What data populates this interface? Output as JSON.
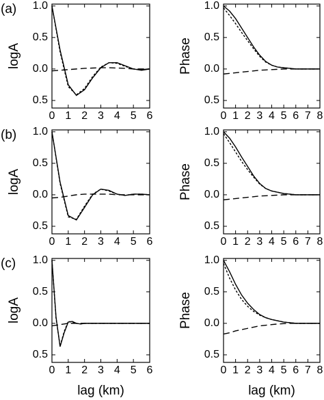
{
  "chart_data": [
    {
      "type": "line",
      "panel_label": "(a)",
      "ylabel": "logA",
      "x": [
        0,
        0.5,
        1,
        1.5,
        2,
        2.5,
        3,
        3.5,
        4,
        4.5,
        5,
        5.5,
        6
      ],
      "series": [
        {
          "color": "#000000",
          "style": "solid",
          "values": [
            1,
            0.3,
            -0.25,
            -0.42,
            -0.33,
            -0.14,
            0.02,
            0.1,
            0.1,
            0.05,
            0,
            -0.02,
            0
          ]
        },
        {
          "color": "#000000",
          "style": "dotted",
          "values": [
            1,
            0.27,
            -0.28,
            -0.41,
            -0.31,
            -0.12,
            0.03,
            0.1,
            0.09,
            0.04,
            0,
            -0.01,
            0
          ]
        },
        {
          "color": "#000000",
          "style": "dashed",
          "values": [
            -0.03,
            -0.02,
            -0.01,
            0,
            0.01,
            0.015,
            0.02,
            0.02,
            0.015,
            0.01,
            0,
            0,
            0
          ]
        }
      ],
      "xlim": [
        0,
        6
      ],
      "xticks": [
        0,
        1,
        2,
        3,
        4,
        5,
        6
      ],
      "ylim": [
        -0.62,
        1.03
      ],
      "yticks": [
        {
          "value": 1,
          "label": "1.0"
        },
        0.5,
        {
          "value": 0,
          "label": "0.0"
        },
        {
          "value": -0.5,
          "label": "0.5"
        }
      ]
    },
    {
      "type": "line",
      "ylabel": "Phase",
      "x": [
        0,
        0.5,
        1,
        1.5,
        2,
        2.5,
        3,
        3.5,
        4,
        4.5,
        5,
        5.5,
        6,
        6.5,
        7,
        7.5,
        8
      ],
      "series": [
        {
          "color": "#000000",
          "style": "solid",
          "values": [
            1,
            0.92,
            0.8,
            0.65,
            0.5,
            0.35,
            0.22,
            0.12,
            0.06,
            0.03,
            0.02,
            0.01,
            0,
            0,
            0,
            0,
            0
          ]
        },
        {
          "color": "#000000",
          "style": "dotted",
          "values": [
            0.97,
            0.85,
            0.72,
            0.58,
            0.45,
            0.32,
            0.2,
            0.11,
            0.06,
            0.03,
            0.02,
            0.01,
            0,
            0,
            0,
            0,
            0
          ]
        },
        {
          "color": "#000000",
          "style": "dashed",
          "values": [
            -0.08,
            -0.07,
            -0.06,
            -0.05,
            -0.04,
            -0.03,
            -0.02,
            -0.015,
            -0.01,
            -0.005,
            0,
            0,
            0,
            0,
            0,
            0,
            0
          ]
        }
      ],
      "xlim": [
        0,
        8
      ],
      "xticks": [
        0,
        1,
        2,
        3,
        4,
        5,
        6,
        7,
        8
      ],
      "ylim": [
        -0.62,
        1.03
      ],
      "yticks": [
        {
          "value": 1,
          "label": "1.0"
        },
        0.5,
        {
          "value": 0,
          "label": "0.0"
        },
        {
          "value": -0.5,
          "label": "0.5"
        }
      ]
    },
    {
      "type": "line",
      "panel_label": "(b)",
      "ylabel": "logA",
      "x": [
        0,
        0.5,
        1,
        1.5,
        2,
        2.5,
        3,
        3.5,
        4,
        4.5,
        5,
        5.5,
        6
      ],
      "series": [
        {
          "color": "#000000",
          "style": "solid",
          "values": [
            1,
            0.2,
            -0.33,
            -0.4,
            -0.2,
            0,
            0.09,
            0.07,
            0.01,
            -0.01,
            0.01,
            0.01,
            0
          ]
        },
        {
          "color": "#000000",
          "style": "dotted",
          "values": [
            1,
            0.18,
            -0.35,
            -0.39,
            -0.18,
            0.01,
            0.09,
            0.06,
            0.01,
            -0.01,
            0.01,
            0.01,
            0
          ]
        },
        {
          "color": "#000000",
          "style": "dashed",
          "values": [
            -0.05,
            -0.04,
            -0.02,
            0,
            0.01,
            0.01,
            0.01,
            0.01,
            0,
            0,
            0,
            0,
            0
          ]
        }
      ],
      "xlim": [
        0,
        6
      ],
      "xticks": [
        0,
        1,
        2,
        3,
        4,
        5,
        6
      ],
      "ylim": [
        -0.62,
        1.03
      ],
      "yticks": [
        {
          "value": 1,
          "label": "1.0"
        },
        0.5,
        {
          "value": 0,
          "label": "0.0"
        },
        {
          "value": -0.5,
          "label": "0.5"
        }
      ]
    },
    {
      "type": "line",
      "ylabel": "Phase",
      "x": [
        0,
        0.5,
        1,
        1.5,
        2,
        2.5,
        3,
        3.5,
        4,
        4.5,
        5,
        5.5,
        6,
        6.5,
        7,
        7.5,
        8
      ],
      "series": [
        {
          "color": "#000000",
          "style": "solid",
          "values": [
            1,
            0.9,
            0.76,
            0.6,
            0.45,
            0.3,
            0.18,
            0.1,
            0.06,
            0.04,
            0.02,
            0.01,
            0,
            0,
            0,
            0,
            0
          ]
        },
        {
          "color": "#000000",
          "style": "dotted",
          "values": [
            0.97,
            0.83,
            0.68,
            0.53,
            0.4,
            0.28,
            0.17,
            0.1,
            0.06,
            0.04,
            0.02,
            0.01,
            0,
            0,
            0,
            0,
            0
          ]
        },
        {
          "color": "#000000",
          "style": "dashed",
          "values": [
            -0.08,
            -0.07,
            -0.06,
            -0.05,
            -0.04,
            -0.03,
            -0.02,
            -0.015,
            -0.01,
            -0.005,
            0,
            0,
            0,
            0,
            0,
            0,
            0
          ]
        }
      ],
      "xlim": [
        0,
        8
      ],
      "xticks": [
        0,
        1,
        2,
        3,
        4,
        5,
        6,
        7,
        8
      ],
      "ylim": [
        -0.62,
        1.03
      ],
      "yticks": [
        {
          "value": 1,
          "label": "1.0"
        },
        0.5,
        {
          "value": 0,
          "label": "0.0"
        },
        {
          "value": -0.5,
          "label": "0.5"
        }
      ]
    },
    {
      "type": "line",
      "panel_label": "(c)",
      "ylabel": "logA",
      "xlabel": "lag (km)",
      "x": [
        0,
        0.25,
        0.5,
        0.75,
        1,
        1.25,
        1.5,
        1.75,
        2,
        3,
        4,
        5,
        6
      ],
      "series": [
        {
          "color": "#000000",
          "style": "solid",
          "values": [
            1,
            0.1,
            -0.37,
            -0.15,
            0.02,
            0.03,
            0,
            -0.01,
            0,
            0,
            0,
            0,
            0
          ]
        },
        {
          "color": "#000000",
          "style": "dotted",
          "values": [
            1,
            0.08,
            -0.36,
            -0.13,
            0.03,
            0.02,
            0,
            -0.01,
            0,
            0,
            0,
            0,
            0
          ]
        },
        {
          "color": "#000000",
          "style": "dashed",
          "values": [
            -0.04,
            -0.03,
            -0.02,
            -0.01,
            0,
            0,
            0,
            0,
            0,
            0,
            0,
            0,
            0
          ]
        }
      ],
      "xlim": [
        0,
        6
      ],
      "xticks": [
        0,
        1,
        2,
        3,
        4,
        5,
        6
      ],
      "ylim": [
        -0.62,
        1.03
      ],
      "yticks": [
        {
          "value": 1,
          "label": "1.0"
        },
        0.5,
        {
          "value": 0,
          "label": "0.0"
        },
        {
          "value": -0.5,
          "label": "0.5"
        }
      ]
    },
    {
      "type": "line",
      "ylabel": "Phase",
      "xlabel": "lag (km)",
      "x": [
        0,
        0.5,
        1,
        1.5,
        2,
        2.5,
        3,
        3.5,
        4,
        4.5,
        5,
        5.5,
        6,
        6.5,
        7,
        7.5,
        8
      ],
      "series": [
        {
          "color": "#000000",
          "style": "solid",
          "values": [
            1,
            0.82,
            0.62,
            0.45,
            0.32,
            0.22,
            0.14,
            0.09,
            0.06,
            0.04,
            0.02,
            0.01,
            0,
            0,
            0,
            0,
            0
          ]
        },
        {
          "color": "#000000",
          "style": "dotted",
          "values": [
            0.95,
            0.72,
            0.53,
            0.38,
            0.27,
            0.19,
            0.13,
            0.09,
            0.06,
            0.04,
            0.02,
            0.01,
            0,
            0,
            0,
            0,
            0
          ]
        },
        {
          "color": "#000000",
          "style": "dashed",
          "values": [
            -0.17,
            -0.15,
            -0.12,
            -0.1,
            -0.08,
            -0.06,
            -0.04,
            -0.03,
            -0.02,
            -0.01,
            -0.005,
            0,
            0,
            0,
            0,
            0,
            0
          ]
        }
      ],
      "xlim": [
        0,
        8
      ],
      "xticks": [
        0,
        1,
        2,
        3,
        4,
        5,
        6,
        7,
        8
      ],
      "ylim": [
        -0.62,
        1.03
      ],
      "yticks": [
        {
          "value": 1,
          "label": "1.0"
        },
        0.5,
        {
          "value": 0,
          "label": "0.0"
        },
        {
          "value": -0.5,
          "label": "0.5"
        }
      ]
    }
  ]
}
